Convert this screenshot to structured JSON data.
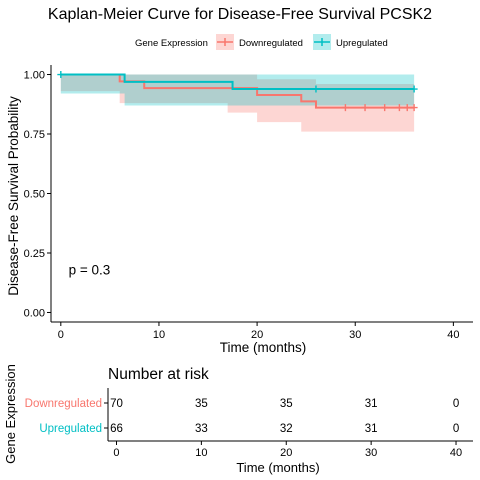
{
  "chart_data": [
    {
      "type": "line",
      "subtype": "kaplan-meier",
      "title": "Kaplan-Meier Curve for Disease-Free Survival PCSK2",
      "xlabel": "Time (months)",
      "ylabel": "Disease-Free Survival Probability",
      "xlim": [
        -1,
        42
      ],
      "ylim": [
        -0.04,
        1.04
      ],
      "x_ticks": [
        0,
        10,
        20,
        30,
        40
      ],
      "y_ticks": [
        0.0,
        0.25,
        0.5,
        0.75,
        1.0
      ],
      "y_tick_labels": [
        "0.00",
        "0.25",
        "0.50",
        "0.75",
        "1.00"
      ],
      "grid": false,
      "legend": {
        "title": "Gene Expression",
        "placement": "top",
        "entries": [
          "Downregulated",
          "Upregulated"
        ]
      },
      "annotation": "p = 0.3",
      "annotation_pos": [
        0.8,
        0.18
      ],
      "series": [
        {
          "name": "Downregulated",
          "color": "#F8766D",
          "steps": [
            [
              0,
              1.0
            ],
            [
              6,
              0.971
            ],
            [
              8.5,
              0.943
            ],
            [
              17,
              0.943
            ],
            [
              20,
              0.914
            ],
            [
              24.5,
              0.887
            ],
            [
              26,
              0.861
            ],
            [
              36,
              0.861
            ]
          ],
          "lower": [
            [
              0,
              1.0
            ],
            [
              6,
              0.93
            ],
            [
              8.5,
              0.88
            ],
            [
              17,
              0.88
            ],
            [
              20,
              0.84
            ],
            [
              24.5,
              0.8
            ],
            [
              26,
              0.76
            ],
            [
              36,
              0.76
            ]
          ],
          "upper": [
            [
              0,
              1.0
            ],
            [
              6,
              1.0
            ],
            [
              8.5,
              1.0
            ],
            [
              17,
              1.0
            ],
            [
              20,
              0.98
            ],
            [
              24.5,
              0.98
            ],
            [
              26,
              0.96
            ],
            [
              36,
              0.96
            ]
          ],
          "censors": [
            [
              29,
              0.861
            ],
            [
              31,
              0.861
            ],
            [
              33,
              0.861
            ],
            [
              34.5,
              0.861
            ],
            [
              35.3,
              0.861
            ],
            [
              36,
              0.861
            ]
          ]
        },
        {
          "name": "Upregulated",
          "color": "#00BFC4",
          "steps": [
            [
              0,
              1.0
            ],
            [
              6.5,
              0.969
            ],
            [
              17.5,
              0.939
            ],
            [
              26,
              0.939
            ],
            [
              36,
              0.939
            ]
          ],
          "lower": [
            [
              0,
              1.0
            ],
            [
              6.5,
              0.92
            ],
            [
              17.5,
              0.87
            ],
            [
              26,
              0.87
            ],
            [
              36,
              0.87
            ]
          ],
          "upper": [
            [
              0,
              1.0
            ],
            [
              6.5,
              1.0
            ],
            [
              17.5,
              1.0
            ],
            [
              26,
              1.0
            ],
            [
              36,
              1.0
            ]
          ],
          "censors": [
            [
              0,
              1.0
            ],
            [
              26,
              0.939
            ],
            [
              36,
              0.939
            ]
          ]
        }
      ]
    },
    {
      "type": "table",
      "title": "Number at risk",
      "xlabel": "Time (months)",
      "ylabel": "Gene Expression",
      "x_ticks": [
        0,
        10,
        20,
        30,
        40
      ],
      "rows": [
        {
          "name": "Downregulated",
          "color": "#F8766D",
          "values": [
            70,
            35,
            35,
            31,
            0
          ]
        },
        {
          "name": "Upregulated",
          "color": "#00BFC4",
          "values": [
            66,
            33,
            32,
            31,
            0
          ]
        }
      ]
    }
  ]
}
